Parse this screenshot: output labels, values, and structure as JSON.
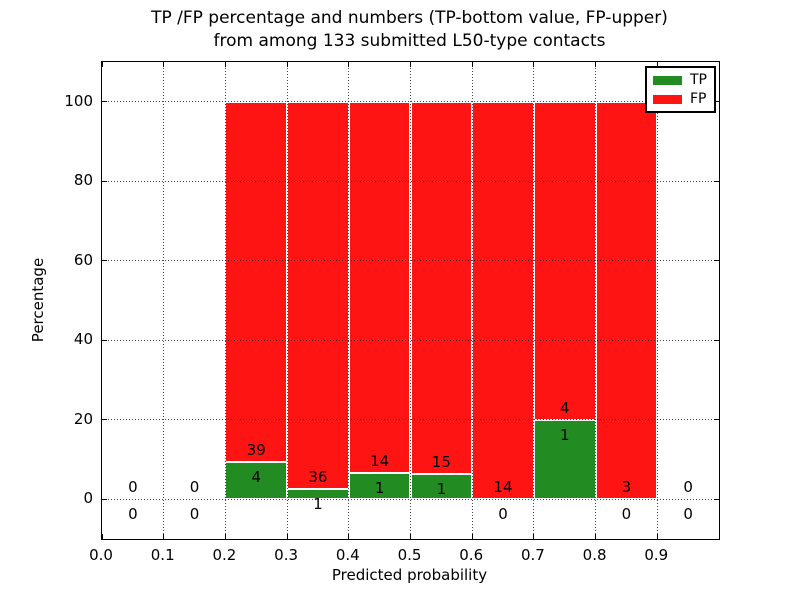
{
  "chart_data": {
    "type": "bar",
    "stacked": true,
    "title": "TP /FP percentage and numbers (TP-bottom value, FP-upper)\nfrom among 133 submitted L50-type contacts",
    "title_lines": [
      "TP /FP percentage and numbers (TP-bottom value, FP-upper)",
      "from among 133 submitted L50-type contacts"
    ],
    "xlabel": "Predicted probability",
    "ylabel": "Percentage",
    "xlim": [
      0.0,
      1.0
    ],
    "ylim": [
      -10,
      110
    ],
    "xticks": [
      {
        "value": 0.0,
        "label": "0.0"
      },
      {
        "value": 0.1,
        "label": "0.1"
      },
      {
        "value": 0.2,
        "label": "0.2"
      },
      {
        "value": 0.3,
        "label": "0.3"
      },
      {
        "value": 0.4,
        "label": "0.4"
      },
      {
        "value": 0.5,
        "label": "0.5"
      },
      {
        "value": 0.6,
        "label": "0.6"
      },
      {
        "value": 0.7,
        "label": "0.7"
      },
      {
        "value": 0.8,
        "label": "0.8"
      },
      {
        "value": 0.9,
        "label": "0.9"
      }
    ],
    "yticks": [
      {
        "value": 0,
        "label": "0"
      },
      {
        "value": 20,
        "label": "20"
      },
      {
        "value": 40,
        "label": "40"
      },
      {
        "value": 60,
        "label": "60"
      },
      {
        "value": 80,
        "label": "80"
      },
      {
        "value": 100,
        "label": "100"
      }
    ],
    "grid": {
      "on": true,
      "style": "dotted"
    },
    "bin_width": 0.1,
    "bins": [
      {
        "x_center": 0.05,
        "tp": 0,
        "fp": 0
      },
      {
        "x_center": 0.15,
        "tp": 0,
        "fp": 0
      },
      {
        "x_center": 0.25,
        "tp": 4,
        "fp": 39
      },
      {
        "x_center": 0.35,
        "tp": 1,
        "fp": 36
      },
      {
        "x_center": 0.45,
        "tp": 1,
        "fp": 14
      },
      {
        "x_center": 0.55,
        "tp": 1,
        "fp": 15
      },
      {
        "x_center": 0.65,
        "tp": 0,
        "fp": 14
      },
      {
        "x_center": 0.75,
        "tp": 1,
        "fp": 4
      },
      {
        "x_center": 0.85,
        "tp": 0,
        "fp": 3
      },
      {
        "x_center": 0.95,
        "tp": 0,
        "fp": 0
      }
    ],
    "colors": {
      "tp": "#228b22",
      "fp": "#ff1414",
      "bar_edge": "#ffffff",
      "background": "#ffffff"
    },
    "legend": {
      "position": "upper right",
      "entries": [
        {
          "label": "TP",
          "color": "#228b22"
        },
        {
          "label": "FP",
          "color": "#ff1414"
        }
      ]
    }
  }
}
